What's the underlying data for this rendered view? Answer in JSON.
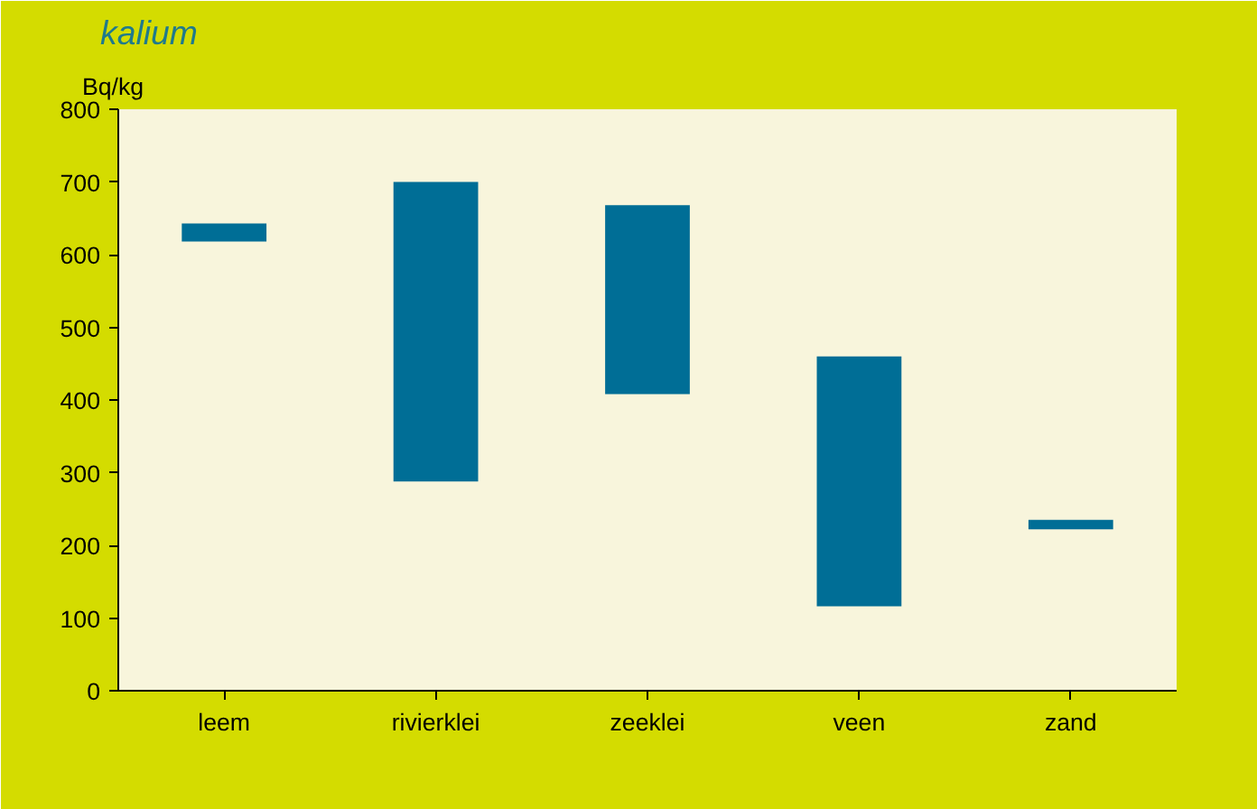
{
  "chart_data": {
    "type": "bar",
    "title": "kalium",
    "ylabel": "Bq/kg",
    "categories": [
      "leem",
      "rivierklei",
      "zeeklei",
      "veen",
      "zand"
    ],
    "base": [
      618,
      288,
      408,
      116,
      222
    ],
    "values": [
      25,
      412,
      260,
      344,
      13
    ],
    "color": "#006e96",
    "ylim": [
      0,
      800
    ],
    "yticks": [
      0,
      100,
      200,
      300,
      400,
      500,
      600,
      700,
      800
    ],
    "grid": false
  }
}
